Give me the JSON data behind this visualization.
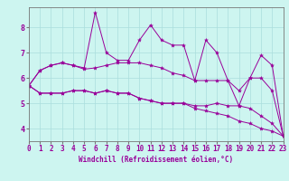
{
  "xlabel": "Windchill (Refroidissement éolien,°C)",
  "bg_color": "#cdf5f0",
  "line_color": "#990099",
  "grid_color": "#aadddd",
  "spine_color": "#777777",
  "x_values": [
    0,
    1,
    2,
    3,
    4,
    5,
    6,
    7,
    8,
    9,
    10,
    11,
    12,
    13,
    14,
    15,
    16,
    17,
    18,
    19,
    20,
    21,
    22,
    23
  ],
  "line1": [
    5.7,
    6.3,
    6.5,
    6.6,
    6.5,
    6.4,
    8.6,
    7.0,
    6.7,
    6.7,
    7.5,
    8.1,
    7.5,
    7.3,
    7.3,
    5.9,
    7.5,
    7.0,
    5.9,
    4.9,
    6.0,
    6.9,
    6.5,
    3.7
  ],
  "line2": [
    5.7,
    6.3,
    6.5,
    6.6,
    6.5,
    6.35,
    6.4,
    6.5,
    6.6,
    6.6,
    6.6,
    6.5,
    6.4,
    6.2,
    6.1,
    5.9,
    5.9,
    5.9,
    5.9,
    5.5,
    6.0,
    6.0,
    5.5,
    3.7
  ],
  "line3": [
    5.7,
    5.4,
    5.4,
    5.4,
    5.5,
    5.5,
    5.4,
    5.5,
    5.4,
    5.4,
    5.2,
    5.1,
    5.0,
    5.0,
    5.0,
    4.9,
    4.9,
    5.0,
    4.9,
    4.9,
    4.8,
    4.5,
    4.2,
    3.7
  ],
  "line4": [
    5.7,
    5.4,
    5.4,
    5.4,
    5.5,
    5.5,
    5.4,
    5.5,
    5.4,
    5.4,
    5.2,
    5.1,
    5.0,
    5.0,
    5.0,
    4.8,
    4.7,
    4.6,
    4.5,
    4.3,
    4.2,
    4.0,
    3.9,
    3.7
  ],
  "ylim": [
    3.5,
    8.8
  ],
  "yticks": [
    4,
    5,
    6,
    7,
    8
  ],
  "xlim": [
    0,
    23
  ],
  "marker": "*",
  "markersize": 3.0,
  "linewidth": 0.7,
  "tick_fontsize": 5.5,
  "xlabel_fontsize": 5.5
}
